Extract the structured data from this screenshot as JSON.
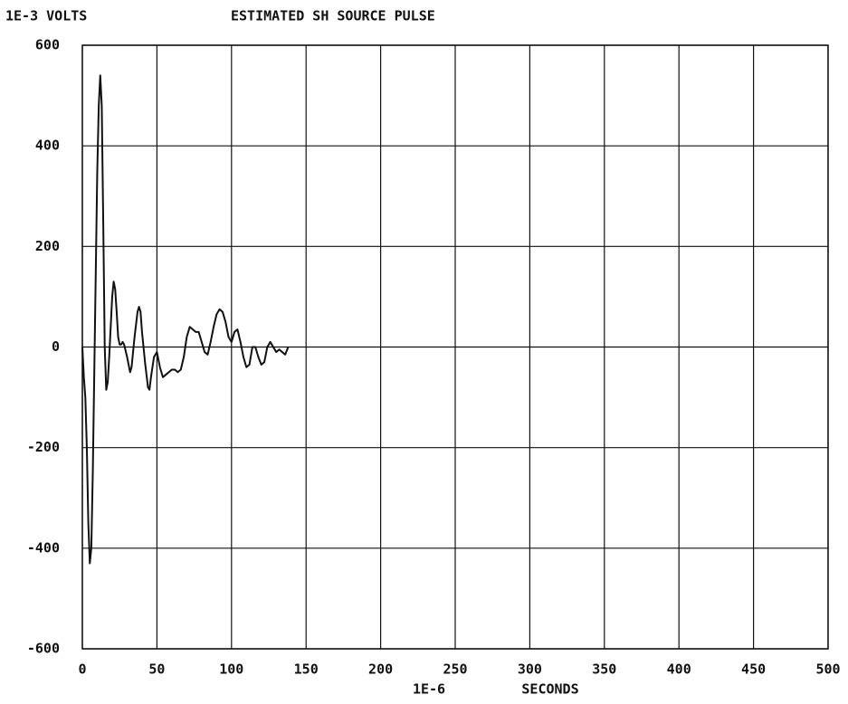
{
  "chart_data": {
    "type": "line",
    "title": "ESTIMATED SH SOURCE PULSE",
    "ylabel": "1E-3 VOLTS",
    "xlabel_unit": "1E-6",
    "xlabel": "SECONDS",
    "xlim": [
      0,
      500
    ],
    "xticks": [
      0,
      50,
      100,
      150,
      200,
      250,
      300,
      350,
      400,
      450,
      500
    ],
    "ylim": [
      -600,
      600
    ],
    "yticks": [
      -600,
      -400,
      -200,
      0,
      200,
      400,
      600
    ],
    "grid": true,
    "series": [
      {
        "name": "pulse",
        "color": "#111111",
        "x": [
          0,
          1,
          2,
          3,
          4,
          5,
          6,
          7,
          8,
          9,
          10,
          11,
          12,
          13,
          14,
          15,
          16,
          17,
          18,
          19,
          20,
          21,
          22,
          23,
          24,
          25,
          26,
          27,
          28,
          30,
          32,
          33,
          35,
          37,
          38,
          39,
          40,
          42,
          44,
          45,
          46,
          48,
          50,
          52,
          54,
          56,
          58,
          60,
          62,
          64,
          66,
          68,
          70,
          72,
          74,
          76,
          78,
          80,
          82,
          84,
          86,
          88,
          90,
          92,
          94,
          96,
          98,
          100,
          102,
          104,
          106,
          108,
          110,
          112,
          114,
          116,
          118,
          120,
          122,
          124,
          126,
          128,
          130,
          132,
          134,
          136,
          138
        ],
        "values": [
          0,
          -60,
          -100,
          -200,
          -350,
          -430,
          -400,
          -250,
          -50,
          150,
          350,
          480,
          540,
          480,
          250,
          0,
          -85,
          -70,
          -20,
          40,
          100,
          130,
          115,
          70,
          20,
          5,
          5,
          10,
          5,
          -20,
          -50,
          -40,
          20,
          70,
          80,
          70,
          30,
          -30,
          -80,
          -85,
          -60,
          -20,
          -10,
          -40,
          -60,
          -55,
          -50,
          -45,
          -45,
          -50,
          -45,
          -20,
          20,
          40,
          35,
          30,
          30,
          10,
          -10,
          -15,
          10,
          40,
          65,
          75,
          70,
          50,
          20,
          10,
          30,
          35,
          10,
          -20,
          -40,
          -35,
          0,
          0,
          -20,
          -35,
          -30,
          0,
          10,
          0,
          -10,
          -5,
          -10,
          -15,
          0
        ]
      }
    ]
  }
}
